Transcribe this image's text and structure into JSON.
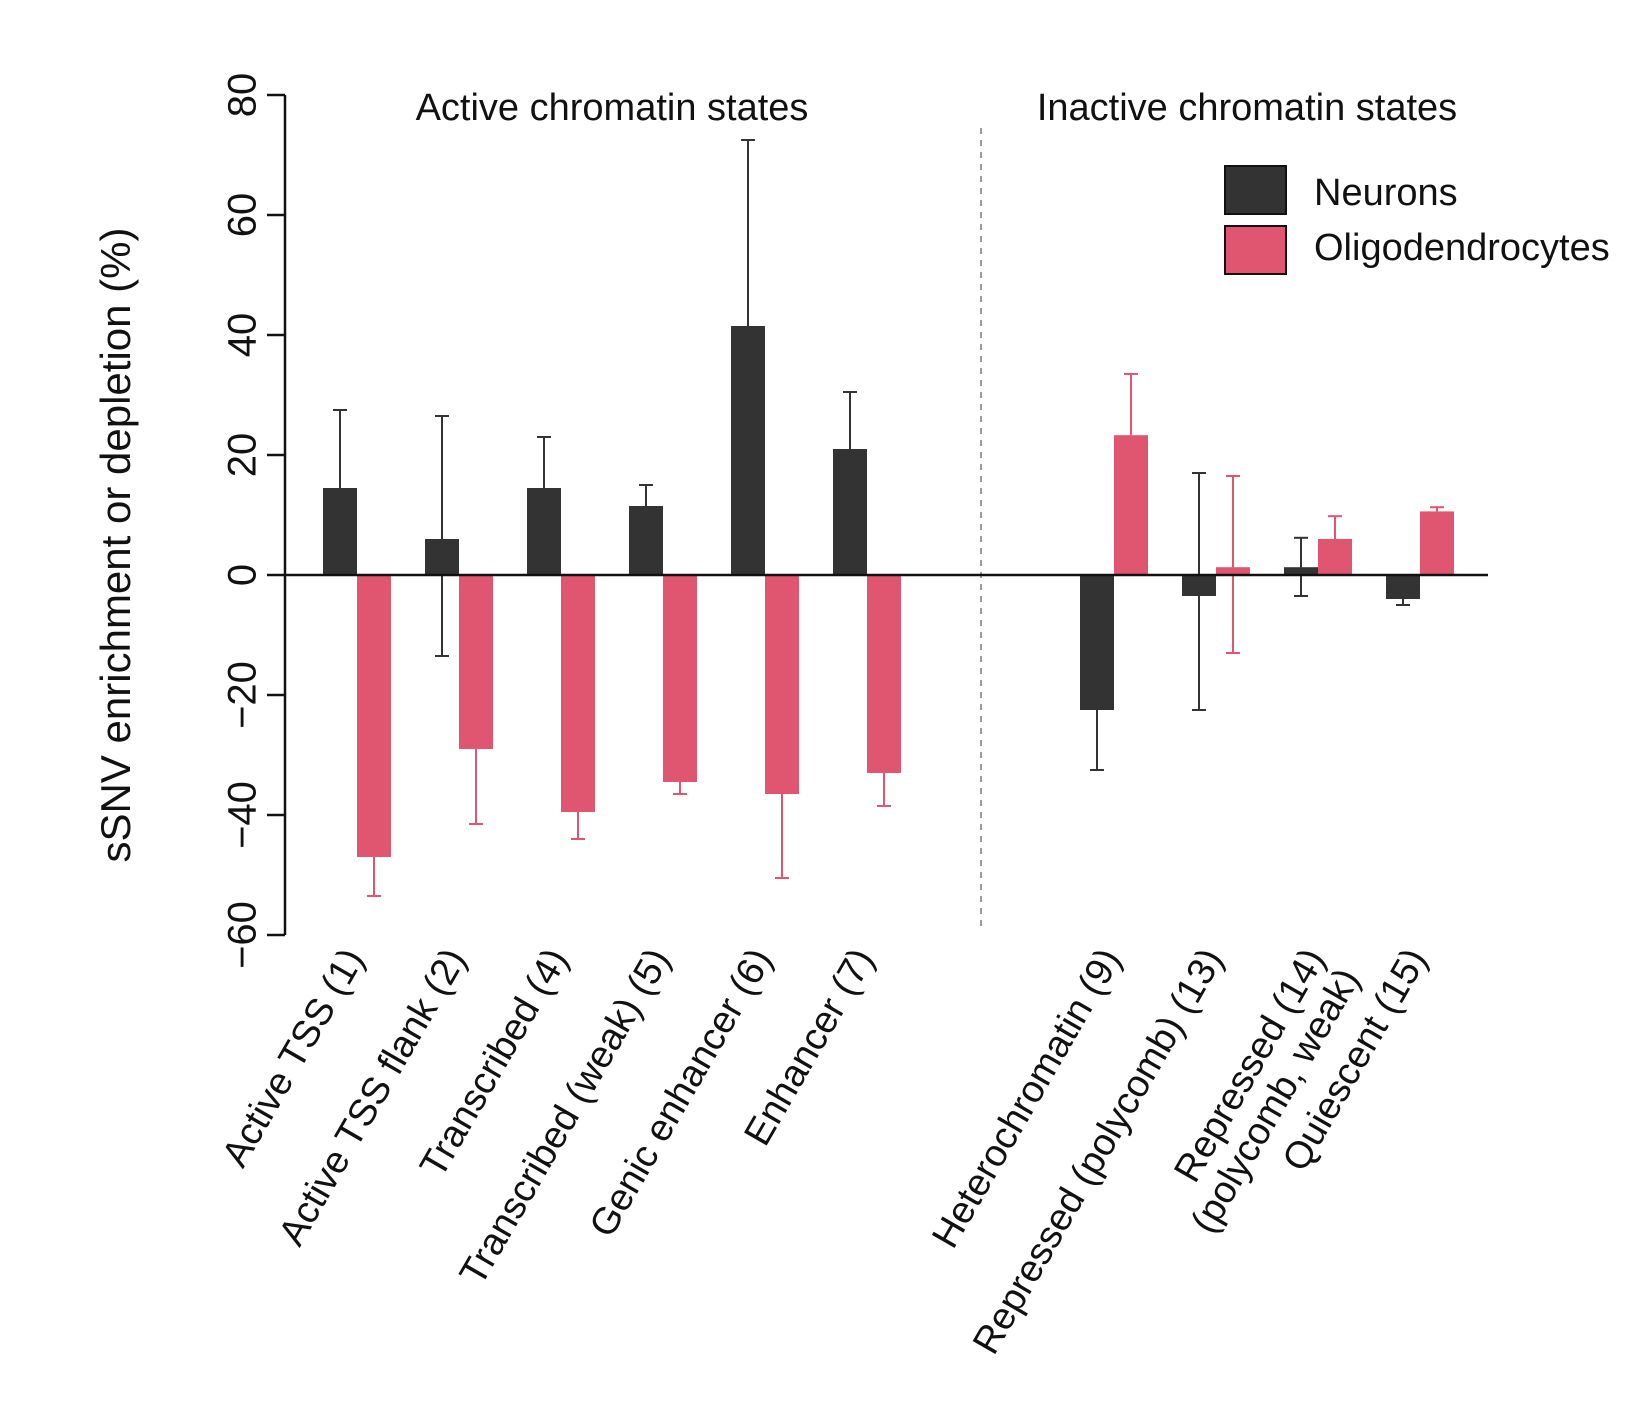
{
  "chart_data": {
    "type": "bar",
    "title": "",
    "xlabel": "",
    "ylabel": "sSNV enrichment or depletion (%)",
    "ylim": [
      -60,
      80
    ],
    "yticks": [
      -60,
      -40,
      -20,
      0,
      20,
      40,
      60,
      80
    ],
    "ytick_labels": [
      "−60",
      "−40",
      "−20",
      "0",
      "20",
      "40",
      "60",
      "80"
    ],
    "sections": [
      "Active chromatin states",
      "Inactive chromatin states"
    ],
    "categories": [
      [
        "Active TSS (1)"
      ],
      [
        "Active TSS flank (2)"
      ],
      [
        "Transcribed (4)"
      ],
      [
        "Transcribed (weak) (5)"
      ],
      [
        "Genic enhancer (6)"
      ],
      [
        "Enhancer (7)"
      ],
      [
        "Heterochromatin (9)"
      ],
      [
        "Repressed (polycomb) (13)"
      ],
      [
        "Repressed (14)",
        "(polycomb, weak)"
      ],
      [
        "Quiescent (15)"
      ]
    ],
    "category_section": [
      0,
      0,
      0,
      0,
      0,
      0,
      1,
      1,
      1,
      1
    ],
    "series": [
      {
        "name": "Neurons",
        "color": "#333333",
        "values": [
          14.5,
          6,
          14.5,
          11.5,
          41.5,
          21,
          -22.5,
          -3.5,
          1.3,
          -4
        ],
        "error_low": [
          0,
          -13.5,
          0,
          0,
          0,
          0,
          -32.5,
          -22.5,
          -3.5,
          -5
        ],
        "error_high": [
          27.5,
          26.5,
          23,
          15,
          72.5,
          30.5,
          0,
          17,
          6.2,
          0
        ]
      },
      {
        "name": "Oligodendrocytes",
        "color": "#e05670",
        "values": [
          -47,
          -29,
          -39.5,
          -34.5,
          -36.5,
          -33,
          23.3,
          1.3,
          6,
          10.6
        ],
        "error_low": [
          -53.5,
          -41.5,
          -44,
          -36.5,
          -50.5,
          -38.5,
          0,
          -13,
          0,
          0
        ],
        "error_high": [
          0,
          0,
          0,
          0,
          0,
          0,
          33.5,
          16.5,
          9.8,
          11.3
        ]
      }
    ],
    "legend": {
      "position": "top-right",
      "entries": [
        "Neurons",
        "Oligodendrocytes"
      ]
    },
    "grid": false,
    "divider": "dashed vertical line between Enhancer (7) and Heterochromatin (9)"
  }
}
